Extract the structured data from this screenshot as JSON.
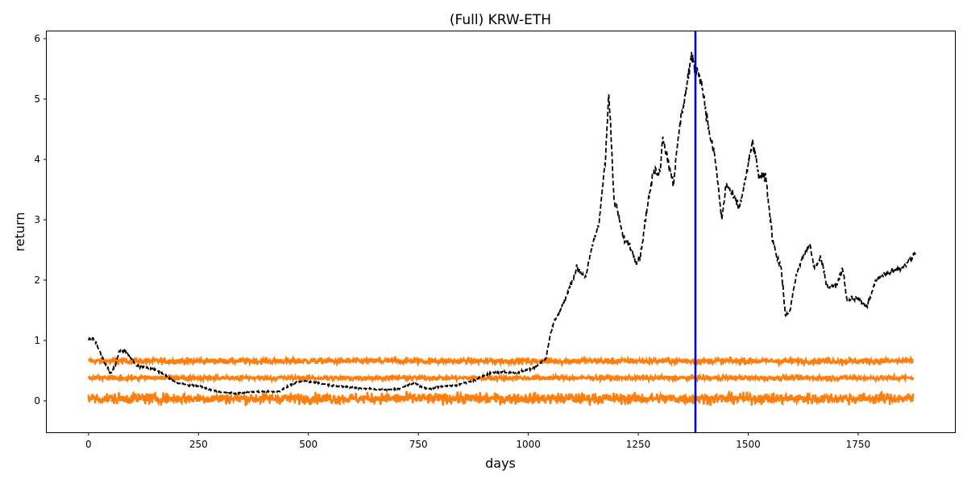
{
  "chart_data": {
    "type": "line",
    "title": "(Full) KRW-ETH",
    "xlabel": "days",
    "ylabel": "return",
    "xlim": [
      -95,
      1970
    ],
    "ylim": [
      -0.52,
      6.12
    ],
    "x_ticks": [
      0,
      250,
      500,
      750,
      1000,
      1250,
      1500,
      1750
    ],
    "y_ticks": [
      0,
      1,
      2,
      3,
      4,
      5,
      6
    ],
    "grid": false,
    "legend": "none",
    "vline": {
      "x": 1380,
      "color": "#0000cc"
    },
    "series": [
      {
        "style": "dashed",
        "color": "#000000",
        "x": [
          0,
          10,
          20,
          35,
          50,
          60,
          70,
          85,
          95,
          110,
          130,
          150,
          180,
          200,
          215,
          230,
          250,
          280,
          300,
          330,
          360,
          400,
          430,
          470,
          490,
          520,
          550,
          600,
          640,
          680,
          710,
          740,
          760,
          780,
          800,
          840,
          880,
          910,
          940,
          970,
          1000,
          1020,
          1040,
          1050,
          1060,
          1070,
          1085,
          1100,
          1110,
          1130,
          1150,
          1160,
          1175,
          1183,
          1188,
          1195,
          1205,
          1215,
          1230,
          1245,
          1255,
          1270,
          1285,
          1300,
          1305,
          1320,
          1330,
          1345,
          1360,
          1370,
          1380,
          1390,
          1400,
          1410,
          1425,
          1440,
          1450,
          1465,
          1480,
          1500,
          1510,
          1525,
          1540,
          1555,
          1565,
          1575,
          1585,
          1595,
          1610,
          1625,
          1640,
          1650,
          1665,
          1680,
          1700,
          1715,
          1725,
          1735,
          1750,
          1770,
          1790,
          1810,
          1830,
          1850,
          1870,
          1880
        ],
        "y": [
          1.02,
          1.05,
          0.92,
          0.65,
          0.45,
          0.58,
          0.82,
          0.82,
          0.72,
          0.58,
          0.55,
          0.52,
          0.4,
          0.3,
          0.28,
          0.25,
          0.25,
          0.18,
          0.15,
          0.12,
          0.14,
          0.16,
          0.15,
          0.3,
          0.33,
          0.3,
          0.26,
          0.22,
          0.2,
          0.18,
          0.21,
          0.3,
          0.22,
          0.2,
          0.24,
          0.26,
          0.35,
          0.46,
          0.48,
          0.46,
          0.52,
          0.58,
          0.7,
          1.1,
          1.35,
          1.45,
          1.7,
          2.0,
          2.2,
          2.05,
          2.7,
          2.9,
          4.0,
          5.1,
          4.4,
          3.3,
          3.1,
          2.7,
          2.6,
          2.3,
          2.4,
          3.2,
          3.8,
          3.8,
          4.4,
          3.9,
          3.6,
          4.6,
          5.2,
          5.7,
          5.5,
          5.4,
          5.0,
          4.5,
          4.0,
          3.0,
          3.6,
          3.4,
          3.2,
          3.9,
          4.3,
          3.7,
          3.7,
          2.7,
          2.4,
          2.2,
          1.4,
          1.5,
          2.1,
          2.4,
          2.6,
          2.2,
          2.35,
          1.9,
          1.9,
          2.2,
          1.65,
          1.7,
          1.7,
          1.55,
          2.0,
          2.1,
          2.15,
          2.2,
          2.35,
          2.45
        ]
      },
      {
        "style": "noise",
        "color": "#ff7f0e",
        "level": 0.66,
        "amplitude": 0.05
      },
      {
        "style": "noise",
        "color": "#ff7f0e",
        "level": 0.38,
        "amplitude": 0.04
      },
      {
        "style": "noise",
        "color": "#ff7f0e",
        "level": 0.04,
        "amplitude": 0.09
      }
    ]
  }
}
